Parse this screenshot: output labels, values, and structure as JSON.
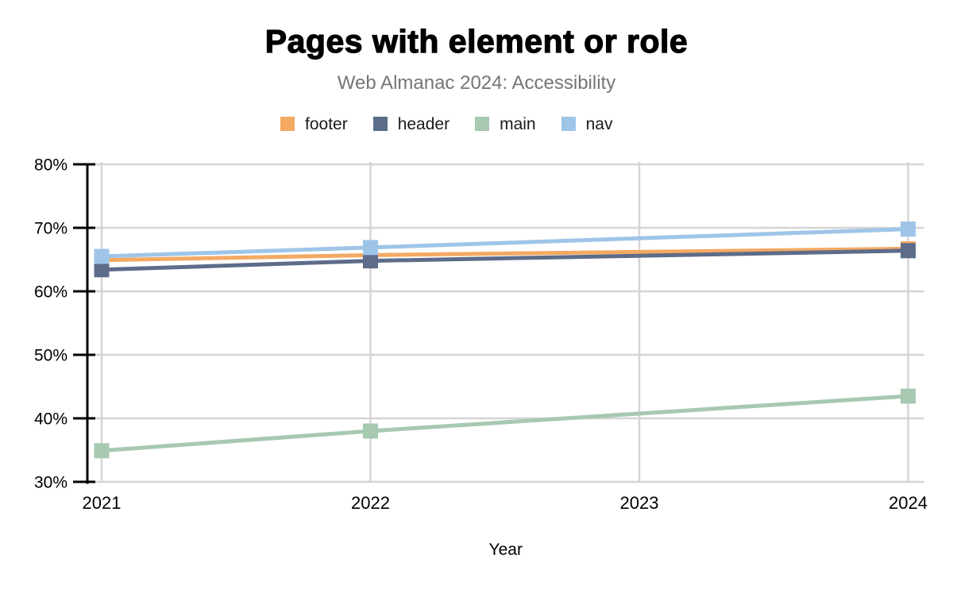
{
  "chart_data": {
    "type": "line",
    "title": "Pages with element or role",
    "subtitle": "Web Almanac 2024: Accessibility",
    "xlabel": "Year",
    "categories": [
      "2021",
      "2022",
      "2023",
      "2024"
    ],
    "ylim": [
      30,
      80
    ],
    "y_ticks": [
      {
        "value": 80,
        "label": "80%"
      },
      {
        "value": 70,
        "label": "70%"
      },
      {
        "value": 60,
        "label": "60%"
      },
      {
        "value": 50,
        "label": "50%"
      },
      {
        "value": 40,
        "label": "40%"
      },
      {
        "value": 30,
        "label": "30%"
      }
    ],
    "grid": true,
    "legend_position": "top",
    "series": [
      {
        "name": "footer",
        "color": "#F4A962",
        "values": [
          64.9,
          65.7,
          null,
          66.7
        ]
      },
      {
        "name": "header",
        "color": "#5D6C89",
        "values": [
          63.4,
          64.8,
          null,
          66.4
        ]
      },
      {
        "name": "main",
        "color": "#A7C8B1",
        "values": [
          34.9,
          38.0,
          null,
          43.5
        ]
      },
      {
        "name": "nav",
        "color": "#9EC5E8",
        "values": [
          65.5,
          66.9,
          null,
          69.8
        ]
      }
    ],
    "styles": {
      "grid_color": "#D5D5D5",
      "axis_color": "#000000",
      "tick_label_color": "#000000",
      "title_color": "#000000",
      "subtitle_color": "#757575",
      "legend_text_color": "#1A1A1A",
      "background": "#FFFFFF"
    }
  }
}
